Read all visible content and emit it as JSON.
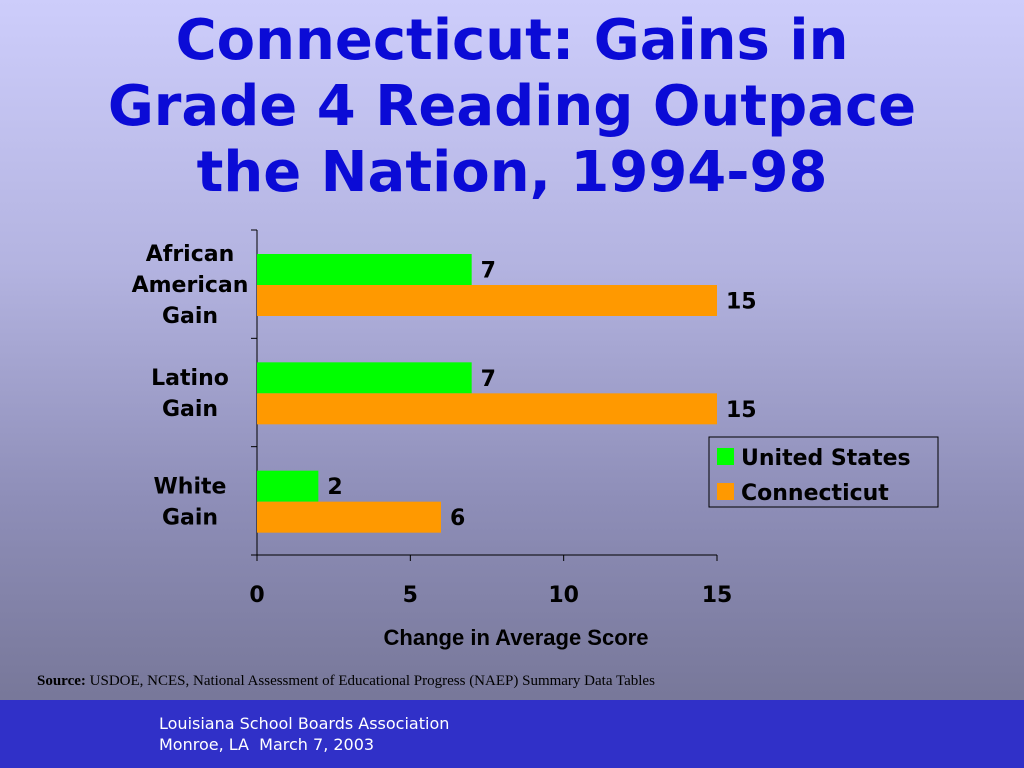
{
  "slide": {
    "title_lines": [
      "Connecticut: Gains in",
      "Grade 4 Reading Outpace",
      "the Nation, 1994-98"
    ],
    "source_label": "Source:",
    "source_text": " USDOE, NCES, National Assessment of Educational Progress (NAEP) Summary Data Tables",
    "footer_lines": [
      "Louisiana School Boards Association",
      "Monroe, LA  March 7, 2003"
    ]
  },
  "chart_data": {
    "type": "bar",
    "orientation": "horizontal",
    "categories": [
      [
        "African",
        "American",
        "Gain"
      ],
      [
        "Latino",
        "Gain"
      ],
      [
        "White",
        "Gain"
      ]
    ],
    "series": [
      {
        "name": "United States",
        "values": [
          7,
          7,
          2
        ],
        "color": "#00ff00"
      },
      {
        "name": "Connecticut",
        "values": [
          15,
          15,
          6
        ],
        "color": "#ff9900"
      }
    ],
    "xlabel": "Change in Average Score",
    "ylabel": "",
    "xlim": [
      0,
      15
    ],
    "xticks": [
      0,
      5,
      10,
      15
    ],
    "legend_position": "right",
    "grid": false,
    "data_labels": true
  }
}
